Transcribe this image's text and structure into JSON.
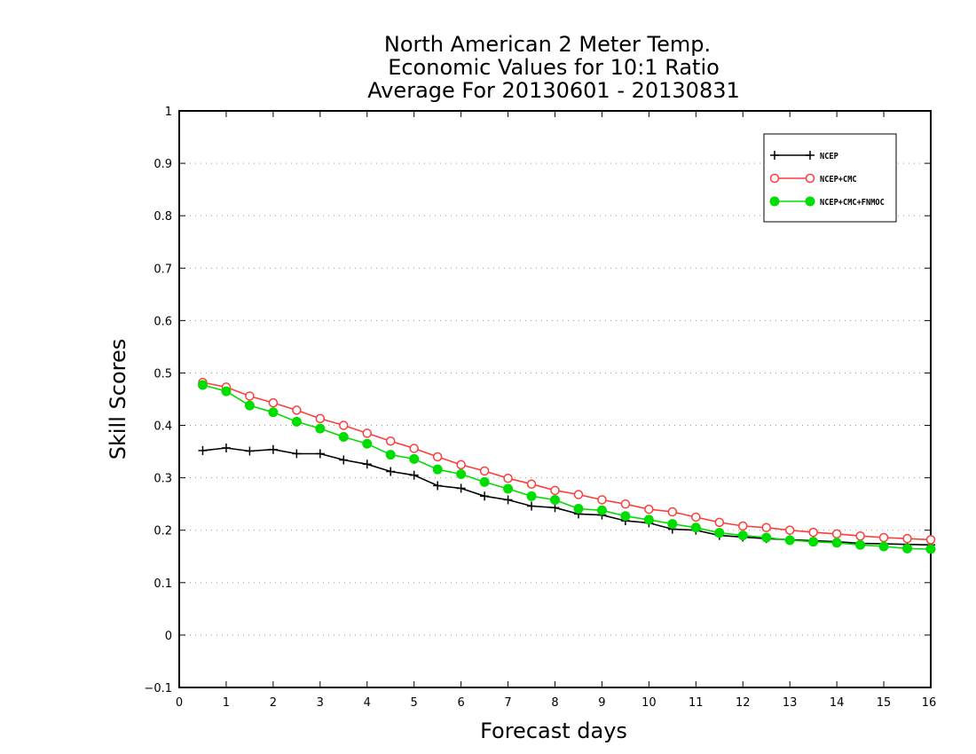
{
  "chart_data": {
    "type": "line",
    "title": [
      "North American 2 Meter Temp.",
      "Economic Values for 10:1 Ratio",
      "Average For 20130601 - 20130831"
    ],
    "xlabel": "Forecast days",
    "ylabel": "Skill Scores",
    "xlim": [
      0,
      16
    ],
    "ylim": [
      -0.1,
      1
    ],
    "xticks": [
      "0",
      "1",
      "2",
      "3",
      "4",
      "5",
      "6",
      "7",
      "8",
      "9",
      "10",
      "11",
      "12",
      "13",
      "14",
      "15",
      "16"
    ],
    "yticks": [
      "−0.1",
      "0",
      "0.1",
      "0.2",
      "0.3",
      "0.4",
      "0.5",
      "0.6",
      "0.7",
      "0.8",
      "0.9",
      "1"
    ],
    "grid": "horizontal dotted",
    "legend_position": "top-right",
    "x": [
      0.5,
      1,
      1.5,
      2,
      2.5,
      3,
      3.5,
      4,
      4.5,
      5,
      5.5,
      6,
      6.5,
      7,
      7.5,
      8,
      8.5,
      9,
      9.5,
      10,
      10.5,
      11,
      11.5,
      12,
      12.5,
      13,
      13.5,
      14,
      14.5,
      15,
      15.5,
      16
    ],
    "series": [
      {
        "name": "NCEP",
        "color": "#000000",
        "marker": "plus",
        "values": [
          0.352,
          0.357,
          0.351,
          0.354,
          0.346,
          0.346,
          0.334,
          0.326,
          0.312,
          0.305,
          0.285,
          0.28,
          0.265,
          0.258,
          0.246,
          0.243,
          0.231,
          0.229,
          0.218,
          0.214,
          0.202,
          0.2,
          0.19,
          0.187,
          0.184,
          0.182,
          0.18,
          0.178,
          0.175,
          0.174,
          0.173,
          0.172
        ]
      },
      {
        "name": "NCEP+CMC",
        "color": "#ff3b3b",
        "marker": "open-circle",
        "values": [
          0.482,
          0.473,
          0.456,
          0.443,
          0.429,
          0.413,
          0.4,
          0.385,
          0.37,
          0.356,
          0.34,
          0.325,
          0.313,
          0.299,
          0.288,
          0.276,
          0.268,
          0.258,
          0.25,
          0.24,
          0.235,
          0.225,
          0.215,
          0.208,
          0.205,
          0.2,
          0.196,
          0.193,
          0.189,
          0.186,
          0.184,
          0.182
        ]
      },
      {
        "name": "NCEP+CMC+FNMOC",
        "color": "#00dd00",
        "marker": "filled-circle",
        "values": [
          0.477,
          0.465,
          0.438,
          0.425,
          0.407,
          0.394,
          0.378,
          0.365,
          0.344,
          0.336,
          0.316,
          0.307,
          0.292,
          0.279,
          0.265,
          0.258,
          0.241,
          0.238,
          0.227,
          0.22,
          0.212,
          0.205,
          0.195,
          0.19,
          0.186,
          0.181,
          0.178,
          0.176,
          0.172,
          0.169,
          0.165,
          0.164
        ]
      }
    ]
  }
}
